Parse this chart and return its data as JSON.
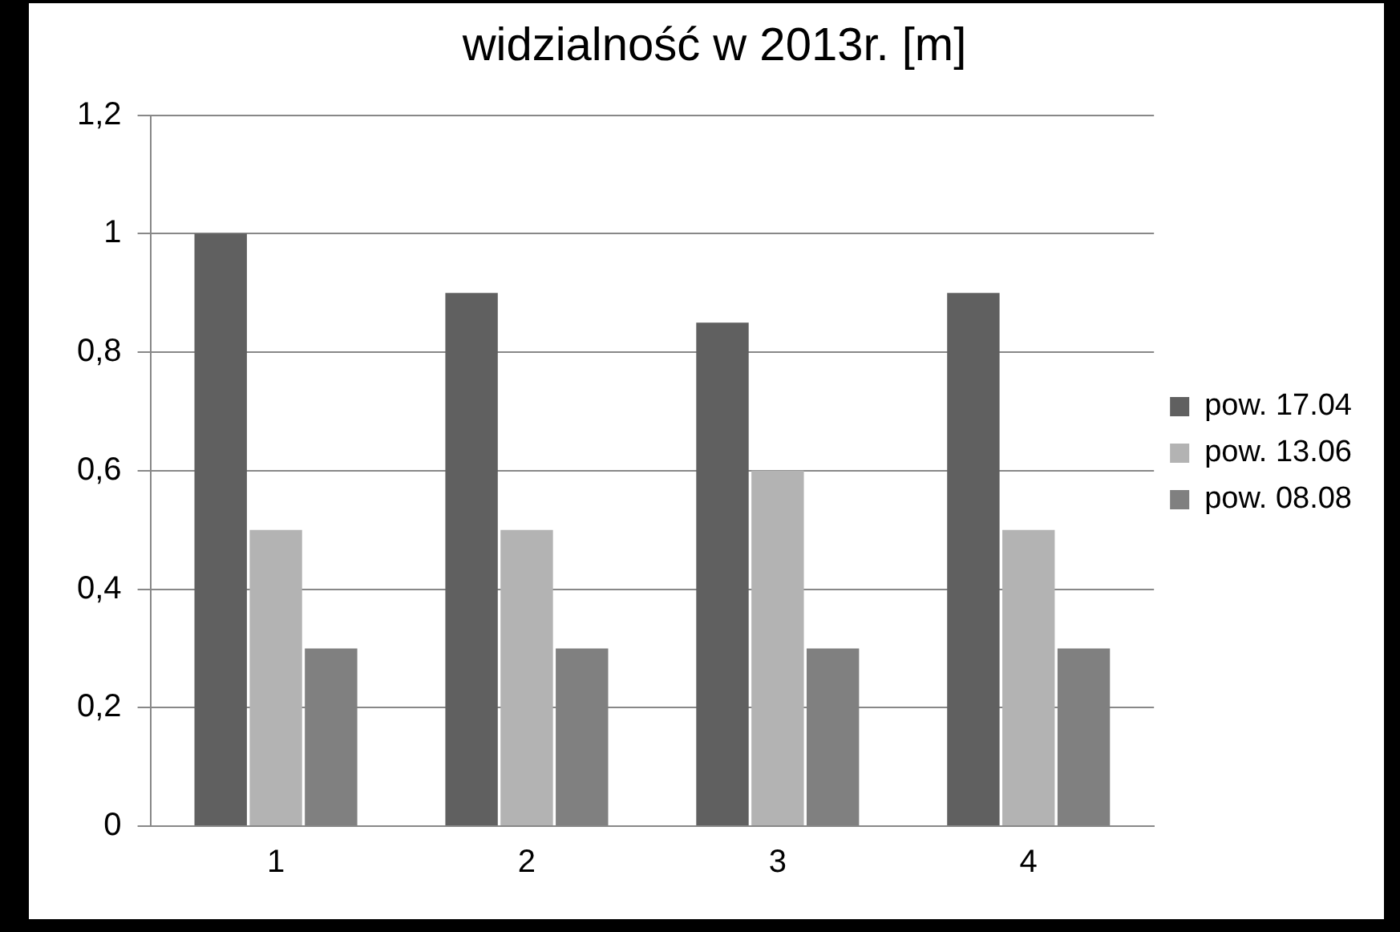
{
  "chart_data": {
    "type": "bar",
    "title": "widzialność w 2013r. [m]",
    "categories": [
      "1",
      "2",
      "3",
      "4"
    ],
    "series": [
      {
        "name": "pow. 17.04",
        "color": "#606060",
        "values": [
          1,
          0.9,
          0.85,
          0.9
        ]
      },
      {
        "name": "pow. 13.06",
        "color": "#b3b3b3",
        "values": [
          0.5,
          0.5,
          0.6,
          0.5
        ]
      },
      {
        "name": "pow. 08.08",
        "color": "#808080",
        "values": [
          0.3,
          0.3,
          0.3,
          0.3
        ]
      }
    ],
    "ylim": [
      0,
      1.2
    ],
    "yticks": [
      0,
      {
        "value": 0.2,
        "label": "0,2"
      },
      {
        "value": 0.4,
        "label": "0,4"
      },
      {
        "value": 0.6,
        "label": "0,6"
      },
      {
        "value": 0.8,
        "label": "0,8"
      },
      1,
      {
        "value": 1.2,
        "label": "1,2"
      }
    ],
    "grid": "y",
    "legend": "right"
  }
}
